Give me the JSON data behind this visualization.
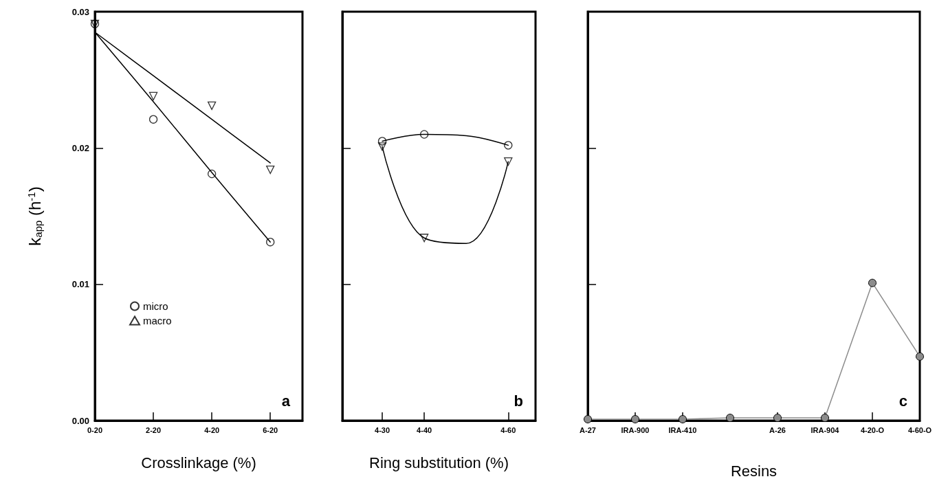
{
  "chart_data": [
    {
      "type": "scatter",
      "xlabel": "Crosslinkage (%)",
      "ylabel": "k$_{app}$ (h$^{-1}$)",
      "categories": [
        "0-20",
        "2-20",
        "4-20",
        "6-20"
      ],
      "ylim": [
        0,
        0.03
      ],
      "yticks": [
        {
          "value": 0,
          "label": "0.00"
        },
        0.01,
        0.02,
        0.03
      ],
      "legend": "bottom left",
      "grid": false,
      "annotations": [
        "a"
      ],
      "series": [
        {
          "name": "micro",
          "color": "#000000",
          "marker": "circle",
          "values": [
            0.0291,
            0.0221,
            0.0181,
            0.0131
          ]
        },
        {
          "name": "macro",
          "color": "#000000",
          "marker": "triangle",
          "values": [
            0.0291,
            0.0238,
            0.0231,
            0.0184
          ]
        },
        {
          "type": "line",
          "color": "#000000",
          "marker": "none",
          "values": [
            0.0285,
            0.0234,
            0.0182,
            0.0131
          ]
        },
        {
          "type": "line",
          "color": "#000000",
          "marker": "none",
          "values": [
            0.0285,
            0.0253,
            0.0221,
            0.0189
          ]
        }
      ]
    },
    {
      "type": "scatter",
      "xlabel": "Ring substitution (%)",
      "categories": [
        "4-30",
        "4-40",
        null,
        "4-60"
      ],
      "ylim": [
        0,
        0.03
      ],
      "yticks": [
        0,
        0.01,
        0.02,
        0.03
      ],
      "tick_labels": "x",
      "grid": false,
      "annotations": [
        "b"
      ],
      "series": [
        {
          "color": "#000000",
          "marker": "circle",
          "values": [
            0.0205,
            0.021,
            null,
            0.0202
          ]
        },
        {
          "color": "#000000",
          "marker": "triangle",
          "values": [
            0.0201,
            0.0134,
            null,
            0.019
          ]
        },
        {
          "type": "line",
          "color": "#000000",
          "marker": "none",
          "values": [
            0.0205,
            0.021,
            0.0209,
            0.0202
          ]
        },
        {
          "type": "line",
          "color": "#000000",
          "marker": "none",
          "values": [
            0.0201,
            0.0134,
            0.013,
            0.019
          ]
        }
      ]
    },
    {
      "type": "line",
      "xlabel": "Resins",
      "categories": [
        "A-27",
        "IRA-900",
        "IRA-410",
        null,
        "A-26",
        "IRA-904",
        "4-20-O",
        "4-60-O"
      ],
      "ylim": [
        0,
        0.03
      ],
      "yticks": [
        0,
        0.01,
        0.02,
        0.03
      ],
      "tick_labels": "x",
      "grid": false,
      "marker": "circle",
      "annotations": [
        "c"
      ],
      "series": [
        {
          "color": "#8c8c8c",
          "values": [
            0.0001,
            0.0001,
            0.0001,
            0.0002,
            0.0002,
            0.0002,
            0.0101,
            0.0047
          ]
        }
      ]
    }
  ]
}
